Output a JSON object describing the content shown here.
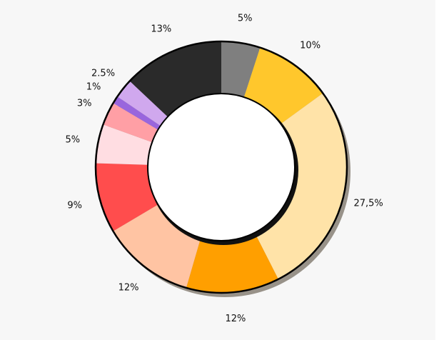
{
  "chart_data": {
    "type": "pie",
    "donut": true,
    "start": "top",
    "direction": "clockwise",
    "legend": "none",
    "slices": [
      {
        "label": "5%",
        "value": 5,
        "color": "#7f7f7f"
      },
      {
        "label": "10%",
        "value": 10,
        "color": "#ffc72c"
      },
      {
        "label": "27,5%",
        "value": 27.5,
        "color": "#ffe3a8"
      },
      {
        "label": "12%",
        "value": 12,
        "color": "#ff9f00"
      },
      {
        "label": "12%",
        "value": 12,
        "color": "#ffc4a3"
      },
      {
        "label": "9%",
        "value": 9,
        "color": "#ff4d4d"
      },
      {
        "label": "5%",
        "value": 5,
        "color": "#ffdde2"
      },
      {
        "label": "3%",
        "value": 3,
        "color": "#ff9fa5"
      },
      {
        "label": "1%",
        "value": 1,
        "color": "#9966dd"
      },
      {
        "label": "2.5%",
        "value": 2.5,
        "color": "#d0a8ee"
      },
      {
        "label": "13%",
        "value": 13,
        "color": "#2a2a2a"
      }
    ]
  }
}
